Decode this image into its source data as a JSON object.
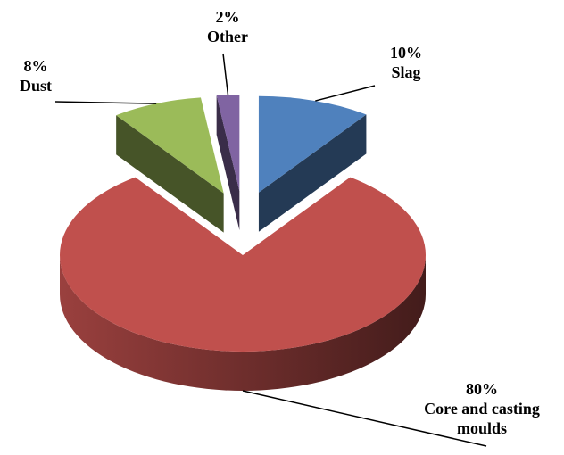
{
  "chart_data": {
    "type": "pie",
    "categories": [
      "Slag",
      "Core and casting moulds",
      "Dust",
      "Other"
    ],
    "values": [
      10,
      80,
      8,
      2
    ],
    "value_labels": [
      "10%",
      "80%",
      "8%",
      "2%"
    ],
    "colors": [
      "#4f81bd",
      "#c0504d",
      "#9bbb59",
      "#8064a2"
    ]
  }
}
